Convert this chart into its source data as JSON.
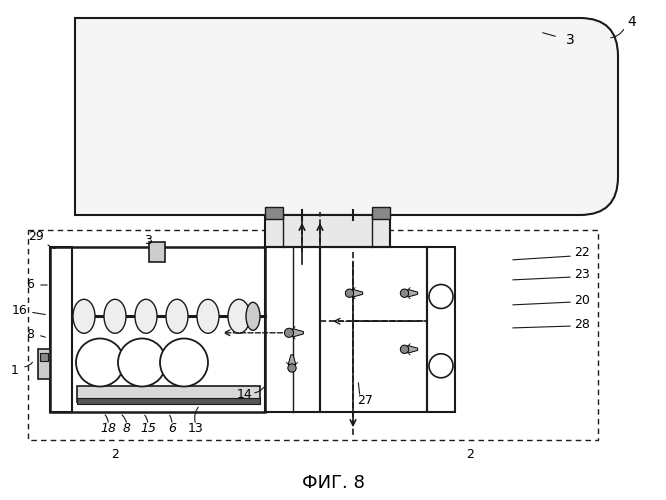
{
  "title": "ФИГ. 8",
  "bg": "#ffffff",
  "lc": "#1a1a1a",
  "fig_w": 6.66,
  "fig_h": 5.0,
  "dpi": 100
}
